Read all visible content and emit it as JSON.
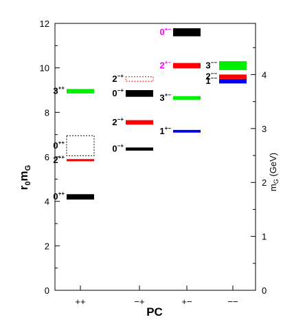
{
  "chart_data": {
    "type": "bar",
    "title": "",
    "xlabel": "PC",
    "ylabel_left_main": "r",
    "ylabel_left_sub1": "0",
    "ylabel_left_main2": "m",
    "ylabel_left_sub2": "G",
    "ylabel_right_main": "m",
    "ylabel_right_sub": "G",
    "ylabel_right_unit": " (GeV)",
    "ylim_left": [
      0,
      12
    ],
    "ylim_right": [
      0,
      4.95
    ],
    "yticks_left": [
      "0",
      "2",
      "4",
      "6",
      "8",
      "10",
      "12"
    ],
    "yticks_right": [
      "0",
      "1",
      "2",
      "3",
      "4"
    ],
    "categories": [
      "++",
      "−+",
      "+−",
      "−−"
    ],
    "colors": {
      "black": "#000000",
      "red": "#ff0000",
      "green": "#00ee00",
      "blue": "#0000ee",
      "magenta": "#ff00ff"
    },
    "states": [
      {
        "label": "0",
        "sup": "++",
        "column": 0,
        "value": 4.2,
        "error": 0.12,
        "color": "black",
        "style": "solid",
        "label_color": "black",
        "label_side": "left"
      },
      {
        "label": "2",
        "sup": "++",
        "column": 0,
        "value": 5.85,
        "error": 0.05,
        "color": "red",
        "style": "solid",
        "label_color": "black",
        "label_side": "left"
      },
      {
        "label": "0",
        "sup": "++",
        "column": 0,
        "value": 6.5,
        "error": 0.45,
        "color": "black",
        "style": "dotted",
        "label_color": "black",
        "label_side": "left"
      },
      {
        "label": "3",
        "sup": "++",
        "column": 0,
        "value": 8.95,
        "error": 0.1,
        "color": "green",
        "style": "solid",
        "label_color": "black",
        "label_side": "left"
      },
      {
        "label": "0",
        "sup": "−+",
        "column": 1,
        "value": 6.35,
        "error": 0.07,
        "color": "black",
        "style": "solid",
        "label_color": "black",
        "label_side": "left"
      },
      {
        "label": "2",
        "sup": "−+",
        "column": 1,
        "value": 7.55,
        "error": 0.1,
        "color": "red",
        "style": "solid",
        "label_color": "black",
        "label_side": "left"
      },
      {
        "label": "0",
        "sup": "−+",
        "column": 1,
        "value": 8.85,
        "error": 0.15,
        "color": "black",
        "style": "solid",
        "label_color": "black",
        "label_side": "left"
      },
      {
        "label": "2",
        "sup": "−+",
        "column": 1,
        "value": 9.5,
        "error": 0.1,
        "color": "red",
        "style": "dotted",
        "label_color": "black",
        "label_side": "left"
      },
      {
        "label": "1",
        "sup": "+−",
        "column": 2,
        "value": 7.15,
        "error": 0.06,
        "color": "blue",
        "style": "solid",
        "label_color": "black",
        "label_side": "left"
      },
      {
        "label": "3",
        "sup": "+−",
        "column": 2,
        "value": 8.65,
        "error": 0.08,
        "color": "green",
        "style": "solid",
        "label_color": "black",
        "label_side": "left"
      },
      {
        "label": "2",
        "sup": "+−",
        "column": 2,
        "value": 10.1,
        "error": 0.12,
        "color": "red",
        "style": "solid",
        "label_color": "magenta",
        "label_side": "left"
      },
      {
        "label": "0",
        "sup": "+−",
        "column": 2,
        "value": 11.6,
        "error": 0.18,
        "color": "black",
        "style": "solid",
        "label_color": "magenta",
        "label_side": "left"
      },
      {
        "label": "1",
        "sup": "−−",
        "column": 3,
        "value": 9.4,
        "error": 0.1,
        "color": "blue",
        "style": "solid",
        "label_color": "black",
        "label_side": "left"
      },
      {
        "label": "2",
        "sup": "−−",
        "column": 3,
        "value": 9.6,
        "error": 0.1,
        "color": "red",
        "style": "solid",
        "label_color": "black",
        "label_side": "left"
      },
      {
        "label": "3",
        "sup": "−−",
        "column": 3,
        "value": 10.1,
        "error": 0.2,
        "color": "green",
        "style": "solid",
        "label_color": "black",
        "label_side": "left"
      }
    ]
  }
}
